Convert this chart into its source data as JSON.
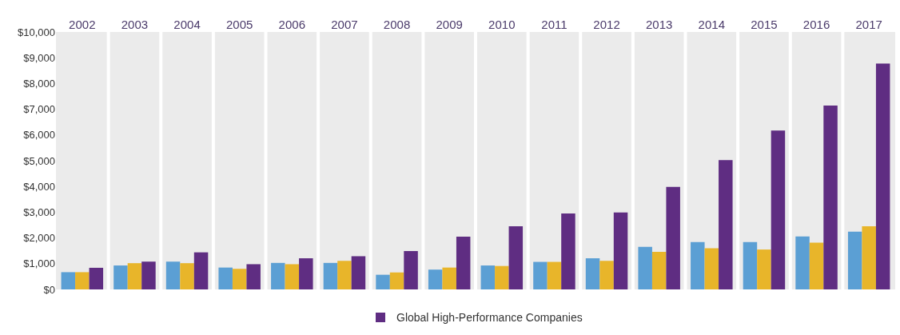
{
  "chart_data": {
    "type": "bar",
    "categories": [
      "2002",
      "2003",
      "2004",
      "2005",
      "2006",
      "2007",
      "2008",
      "2009",
      "2010",
      "2011",
      "2012",
      "2013",
      "2014",
      "2015",
      "2016",
      "2017"
    ],
    "series": [
      {
        "color": "#5b9fd4",
        "values": [
          670,
          930,
          1080,
          850,
          1030,
          1030,
          570,
          770,
          930,
          1070,
          1210,
          1650,
          1840,
          1840,
          2060,
          2240
        ]
      },
      {
        "color": "#e8b52a",
        "values": [
          670,
          1020,
          1020,
          800,
          980,
          1110,
          660,
          850,
          910,
          1070,
          1110,
          1460,
          1600,
          1550,
          1820,
          2450
        ]
      },
      {
        "name": "Global High-Performance Companies",
        "color": "#5f2d82",
        "values": [
          840,
          1080,
          1440,
          980,
          1210,
          1290,
          1490,
          2050,
          2450,
          2950,
          2990,
          3980,
          5020,
          6170,
          7140,
          8770
        ]
      }
    ],
    "ylim": [
      0,
      10000
    ],
    "yticks": [
      {
        "value": 0,
        "label": "$0"
      },
      {
        "value": 1000,
        "label": "$1,000"
      },
      {
        "value": 2000,
        "label": "$2,000"
      },
      {
        "value": 3000,
        "label": "$3,000"
      },
      {
        "value": 4000,
        "label": "$4,000"
      },
      {
        "value": 5000,
        "label": "$5,000"
      },
      {
        "value": 6000,
        "label": "$6,000"
      },
      {
        "value": 7000,
        "label": "$7,000"
      },
      {
        "value": 8000,
        "label": "$8,000"
      },
      {
        "value": 9000,
        "label": "$9,000"
      },
      {
        "value": 10000,
        "label": "$10,000"
      }
    ],
    "grid": "x",
    "legend": "bottom"
  }
}
